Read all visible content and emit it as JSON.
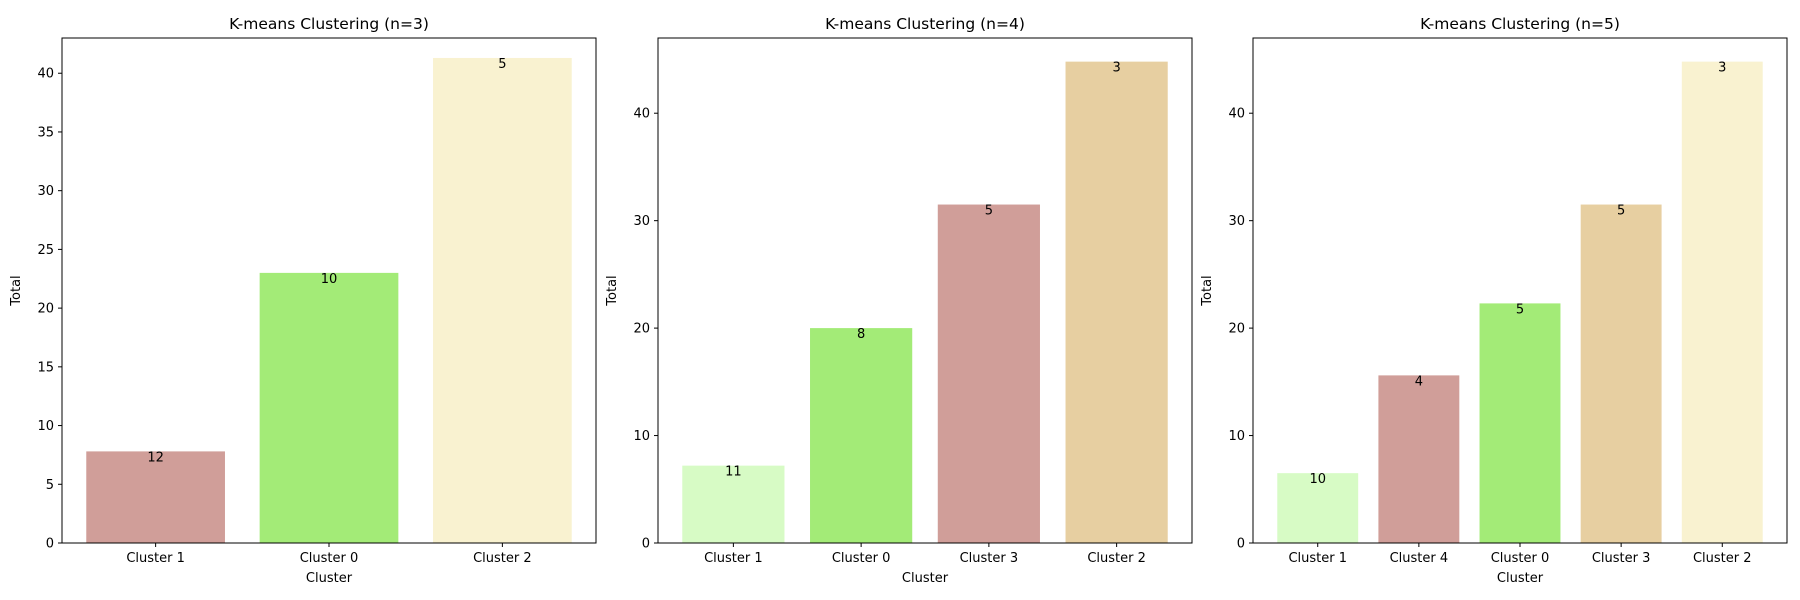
{
  "chart_data": [
    {
      "type": "bar",
      "title": "K-means Clustering (n=3)",
      "xlabel": "Cluster",
      "ylabel": "Total",
      "ylim": [
        0,
        43
      ],
      "yticks": [
        0,
        5,
        10,
        15,
        20,
        25,
        30,
        35,
        40
      ],
      "categories": [
        "Cluster 1",
        "Cluster 0",
        "Cluster 2"
      ],
      "values": [
        7.8,
        23.0,
        41.3
      ],
      "labels": [
        "12",
        "10",
        "5"
      ],
      "colors": [
        "#d09e99",
        "#a3eb77",
        "#f9f2d0"
      ]
    },
    {
      "type": "bar",
      "title": "K-means Clustering (n=4)",
      "xlabel": "Cluster",
      "ylabel": "Total",
      "ylim": [
        0,
        47
      ],
      "yticks": [
        0,
        10,
        20,
        30,
        40
      ],
      "categories": [
        "Cluster 1",
        "Cluster 0",
        "Cluster 3",
        "Cluster 2"
      ],
      "values": [
        7.2,
        20.0,
        31.5,
        44.8
      ],
      "labels": [
        "11",
        "8",
        "5",
        "3"
      ],
      "colors": [
        "#d7fbc5",
        "#a3eb77",
        "#d09e99",
        "#e7cfa1"
      ]
    },
    {
      "type": "bar",
      "title": "K-means Clustering (n=5)",
      "xlabel": "Cluster",
      "ylabel": "Total",
      "ylim": [
        0,
        47
      ],
      "yticks": [
        0,
        10,
        20,
        30,
        40
      ],
      "categories": [
        "Cluster 1",
        "Cluster 4",
        "Cluster 0",
        "Cluster 3",
        "Cluster 2"
      ],
      "values": [
        6.5,
        15.6,
        22.3,
        31.5,
        44.8
      ],
      "labels": [
        "10",
        "4",
        "5",
        "5",
        "3"
      ],
      "colors": [
        "#d7fbc5",
        "#d09e99",
        "#a3eb77",
        "#e7cfa1",
        "#f9f2d0"
      ]
    }
  ]
}
